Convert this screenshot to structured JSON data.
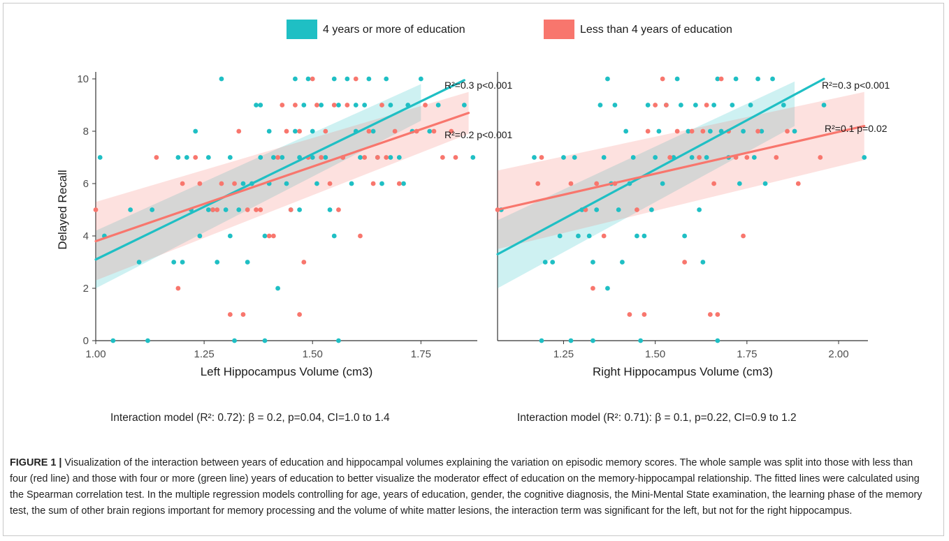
{
  "legend": {
    "items": [
      {
        "label": "4 years or more of education",
        "color": "#1fbfc4"
      },
      {
        "label": "Less than 4 years of education",
        "color": "#f8766d"
      }
    ]
  },
  "chart_data": [
    {
      "type": "scatter",
      "xlabel": "Left Hippocampus Volume (cm3)",
      "ylabel": "Delayed Recall",
      "xlim": [
        1.0,
        1.88
      ],
      "ylim": [
        0,
        10
      ],
      "xticks": [
        "1.00",
        "1.25",
        "1.50",
        "1.75"
      ],
      "yticks": [
        "0",
        "2",
        "4",
        "6",
        "8",
        "10"
      ],
      "series": [
        {
          "name": "4 years or more of education",
          "color": "#1fbfc4",
          "annotation": {
            "r2": "R²=0.3",
            "p": "p<0.001"
          },
          "fit": {
            "x": [
              1.0,
              1.85
            ],
            "y": [
              3.1,
              9.95
            ]
          },
          "ci": {
            "x": [
              1.0,
              1.75
            ],
            "upper": [
              4.2,
              9.8
            ],
            "lower": [
              2.0,
              8.4
            ]
          },
          "points": [
            [
              1.01,
              7
            ],
            [
              1.02,
              4
            ],
            [
              1.04,
              0
            ],
            [
              1.08,
              5
            ],
            [
              1.1,
              3
            ],
            [
              1.12,
              0
            ],
            [
              1.13,
              5
            ],
            [
              1.18,
              3
            ],
            [
              1.19,
              7
            ],
            [
              1.2,
              3
            ],
            [
              1.21,
              7
            ],
            [
              1.22,
              5
            ],
            [
              1.23,
              8
            ],
            [
              1.24,
              4
            ],
            [
              1.26,
              7
            ],
            [
              1.26,
              5
            ],
            [
              1.27,
              5
            ],
            [
              1.28,
              3
            ],
            [
              1.29,
              10
            ],
            [
              1.3,
              5
            ],
            [
              1.31,
              4
            ],
            [
              1.31,
              7
            ],
            [
              1.32,
              0
            ],
            [
              1.33,
              5
            ],
            [
              1.34,
              6
            ],
            [
              1.35,
              3
            ],
            [
              1.36,
              6
            ],
            [
              1.37,
              9
            ],
            [
              1.38,
              9
            ],
            [
              1.38,
              7
            ],
            [
              1.39,
              4
            ],
            [
              1.39,
              0
            ],
            [
              1.4,
              6
            ],
            [
              1.4,
              8
            ],
            [
              1.41,
              7
            ],
            [
              1.42,
              2
            ],
            [
              1.43,
              7
            ],
            [
              1.44,
              6
            ],
            [
              1.45,
              5
            ],
            [
              1.46,
              10
            ],
            [
              1.46,
              8
            ],
            [
              1.47,
              7
            ],
            [
              1.47,
              5
            ],
            [
              1.48,
              9
            ],
            [
              1.49,
              10
            ],
            [
              1.5,
              7
            ],
            [
              1.5,
              8
            ],
            [
              1.51,
              6
            ],
            [
              1.52,
              9
            ],
            [
              1.53,
              7
            ],
            [
              1.54,
              5
            ],
            [
              1.55,
              4
            ],
            [
              1.55,
              10
            ],
            [
              1.56,
              9
            ],
            [
              1.56,
              0
            ],
            [
              1.57,
              7
            ],
            [
              1.58,
              10
            ],
            [
              1.59,
              6
            ],
            [
              1.6,
              8
            ],
            [
              1.6,
              9
            ],
            [
              1.61,
              7
            ],
            [
              1.62,
              9
            ],
            [
              1.63,
              10
            ],
            [
              1.64,
              8
            ],
            [
              1.65,
              7
            ],
            [
              1.66,
              6
            ],
            [
              1.67,
              10
            ],
            [
              1.68,
              7
            ],
            [
              1.68,
              9
            ],
            [
              1.7,
              7
            ],
            [
              1.71,
              6
            ],
            [
              1.72,
              9
            ],
            [
              1.73,
              8
            ],
            [
              1.75,
              10
            ],
            [
              1.77,
              8
            ],
            [
              1.79,
              9
            ],
            [
              1.85,
              9
            ],
            [
              1.87,
              7
            ]
          ]
        },
        {
          "name": "Less than 4 years of education",
          "color": "#f8766d",
          "annotation": {
            "r2": "R²=0.2",
            "p": "p<0.001"
          },
          "fit": {
            "x": [
              1.0,
              1.86
            ],
            "y": [
              3.8,
              8.7
            ]
          },
          "ci": {
            "x": [
              1.0,
              1.86
            ],
            "upper": [
              5.3,
              9.5
            ],
            "lower": [
              2.3,
              7.9
            ]
          },
          "points": [
            [
              1.0,
              5
            ],
            [
              1.14,
              7
            ],
            [
              1.19,
              2
            ],
            [
              1.2,
              6
            ],
            [
              1.23,
              7
            ],
            [
              1.24,
              6
            ],
            [
              1.27,
              5
            ],
            [
              1.28,
              5
            ],
            [
              1.29,
              6
            ],
            [
              1.31,
              1
            ],
            [
              1.32,
              6
            ],
            [
              1.33,
              8
            ],
            [
              1.34,
              1
            ],
            [
              1.35,
              5
            ],
            [
              1.37,
              5
            ],
            [
              1.38,
              5
            ],
            [
              1.4,
              4
            ],
            [
              1.41,
              4
            ],
            [
              1.42,
              7
            ],
            [
              1.43,
              9
            ],
            [
              1.44,
              8
            ],
            [
              1.45,
              5
            ],
            [
              1.46,
              9
            ],
            [
              1.47,
              1
            ],
            [
              1.47,
              8
            ],
            [
              1.48,
              3
            ],
            [
              1.49,
              7
            ],
            [
              1.5,
              10
            ],
            [
              1.51,
              9
            ],
            [
              1.52,
              7
            ],
            [
              1.53,
              8
            ],
            [
              1.54,
              6
            ],
            [
              1.55,
              9
            ],
            [
              1.56,
              5
            ],
            [
              1.57,
              7
            ],
            [
              1.58,
              9
            ],
            [
              1.6,
              10
            ],
            [
              1.61,
              4
            ],
            [
              1.62,
              7
            ],
            [
              1.63,
              8
            ],
            [
              1.64,
              6
            ],
            [
              1.65,
              7
            ],
            [
              1.66,
              9
            ],
            [
              1.67,
              7
            ],
            [
              1.69,
              8
            ],
            [
              1.7,
              6
            ],
            [
              1.74,
              8
            ],
            [
              1.76,
              9
            ],
            [
              1.78,
              8
            ],
            [
              1.8,
              7
            ],
            [
              1.82,
              8
            ],
            [
              1.83,
              7
            ]
          ]
        }
      ]
    },
    {
      "type": "scatter",
      "xlabel": "Right Hippocampus Volume (cm3)",
      "ylabel": "",
      "xlim": [
        1.07,
        2.08
      ],
      "ylim": [
        0,
        10
      ],
      "xticks": [
        "1.25",
        "1.50",
        "1.75",
        "2.00"
      ],
      "yticks": [],
      "series": [
        {
          "name": "4 years or more of education",
          "color": "#1fbfc4",
          "annotation": {
            "r2": "R²=0.3",
            "p": "p<0.001"
          },
          "fit": {
            "x": [
              1.07,
              1.96
            ],
            "y": [
              3.3,
              10.0
            ]
          },
          "ci": {
            "x": [
              1.07,
              1.88
            ],
            "upper": [
              4.6,
              9.9
            ],
            "lower": [
              2.0,
              8.2
            ]
          },
          "points": [
            [
              1.08,
              5
            ],
            [
              1.17,
              7
            ],
            [
              1.19,
              0
            ],
            [
              1.2,
              3
            ],
            [
              1.22,
              3
            ],
            [
              1.24,
              4
            ],
            [
              1.25,
              7
            ],
            [
              1.27,
              0
            ],
            [
              1.28,
              7
            ],
            [
              1.29,
              4
            ],
            [
              1.3,
              5
            ],
            [
              1.32,
              4
            ],
            [
              1.33,
              0
            ],
            [
              1.33,
              3
            ],
            [
              1.34,
              5
            ],
            [
              1.35,
              9
            ],
            [
              1.36,
              7
            ],
            [
              1.37,
              10
            ],
            [
              1.37,
              2
            ],
            [
              1.38,
              6
            ],
            [
              1.39,
              9
            ],
            [
              1.4,
              5
            ],
            [
              1.41,
              3
            ],
            [
              1.42,
              8
            ],
            [
              1.43,
              6
            ],
            [
              1.44,
              7
            ],
            [
              1.45,
              4
            ],
            [
              1.46,
              0
            ],
            [
              1.47,
              4
            ],
            [
              1.48,
              9
            ],
            [
              1.49,
              5
            ],
            [
              1.5,
              7
            ],
            [
              1.51,
              8
            ],
            [
              1.52,
              6
            ],
            [
              1.53,
              9
            ],
            [
              1.55,
              7
            ],
            [
              1.56,
              10
            ],
            [
              1.57,
              9
            ],
            [
              1.58,
              4
            ],
            [
              1.59,
              8
            ],
            [
              1.6,
              7
            ],
            [
              1.61,
              9
            ],
            [
              1.62,
              5
            ],
            [
              1.63,
              3
            ],
            [
              1.64,
              7
            ],
            [
              1.65,
              8
            ],
            [
              1.66,
              9
            ],
            [
              1.67,
              10
            ],
            [
              1.67,
              0
            ],
            [
              1.68,
              8
            ],
            [
              1.7,
              7
            ],
            [
              1.71,
              9
            ],
            [
              1.72,
              10
            ],
            [
              1.73,
              6
            ],
            [
              1.74,
              8
            ],
            [
              1.76,
              9
            ],
            [
              1.77,
              7
            ],
            [
              1.78,
              10
            ],
            [
              1.79,
              8
            ],
            [
              1.8,
              6
            ],
            [
              1.82,
              10
            ],
            [
              1.85,
              9
            ],
            [
              1.88,
              8
            ],
            [
              1.96,
              9
            ],
            [
              2.07,
              7
            ]
          ]
        },
        {
          "name": "Less than 4 years of education",
          "color": "#f8766d",
          "annotation": {
            "r2": "R²=0.1",
            "p": "p=0.02"
          },
          "fit": {
            "x": [
              1.07,
              2.07
            ],
            "y": [
              5.0,
              8.2
            ]
          },
          "ci": {
            "x": [
              1.07,
              2.07
            ],
            "upper": [
              6.5,
              9.5
            ],
            "lower": [
              3.5,
              6.9
            ]
          },
          "points": [
            [
              1.07,
              5
            ],
            [
              1.18,
              6
            ],
            [
              1.19,
              7
            ],
            [
              1.27,
              6
            ],
            [
              1.31,
              5
            ],
            [
              1.33,
              2
            ],
            [
              1.34,
              6
            ],
            [
              1.36,
              4
            ],
            [
              1.39,
              6
            ],
            [
              1.43,
              1
            ],
            [
              1.45,
              5
            ],
            [
              1.47,
              1
            ],
            [
              1.48,
              8
            ],
            [
              1.5,
              9
            ],
            [
              1.52,
              10
            ],
            [
              1.53,
              9
            ],
            [
              1.54,
              7
            ],
            [
              1.56,
              8
            ],
            [
              1.58,
              3
            ],
            [
              1.6,
              8
            ],
            [
              1.62,
              7
            ],
            [
              1.63,
              8
            ],
            [
              1.64,
              9
            ],
            [
              1.65,
              1
            ],
            [
              1.66,
              6
            ],
            [
              1.67,
              1
            ],
            [
              1.68,
              10
            ],
            [
              1.7,
              8
            ],
            [
              1.72,
              7
            ],
            [
              1.74,
              4
            ],
            [
              1.75,
              7
            ],
            [
              1.78,
              8
            ],
            [
              1.83,
              7
            ],
            [
              1.86,
              8
            ],
            [
              1.89,
              6
            ],
            [
              1.95,
              7
            ]
          ]
        }
      ]
    }
  ],
  "interaction_left": "Interaction model (R²: 0.72): β = 0.2, p=0.04, CI=1.0 to 1.4",
  "interaction_right": "Interaction model (R²: 0.71): β = 0.1, p=0.22, CI=0.9 to 1.2",
  "caption": {
    "label": "FIGURE 1 |",
    "text": " Visualization of the interaction between years of education and hippocampal volumes explaining the variation on episodic memory scores. The whole sample was split into those with less than four (red line) and those with four or more (green line) years of education to better visualize the moderator effect of education on the memory-hippocampal relationship. The fitted lines were calculated using the Spearman correlation test. In the multiple regression models controlling for age, years of education, gender, the cognitive diagnosis, the Mini-Mental State examination, the learning phase of the memory test, the sum of other brain regions important for memory processing and the volume of white matter lesions, the interaction term was significant for the left, but not for the right hippocampus."
  }
}
